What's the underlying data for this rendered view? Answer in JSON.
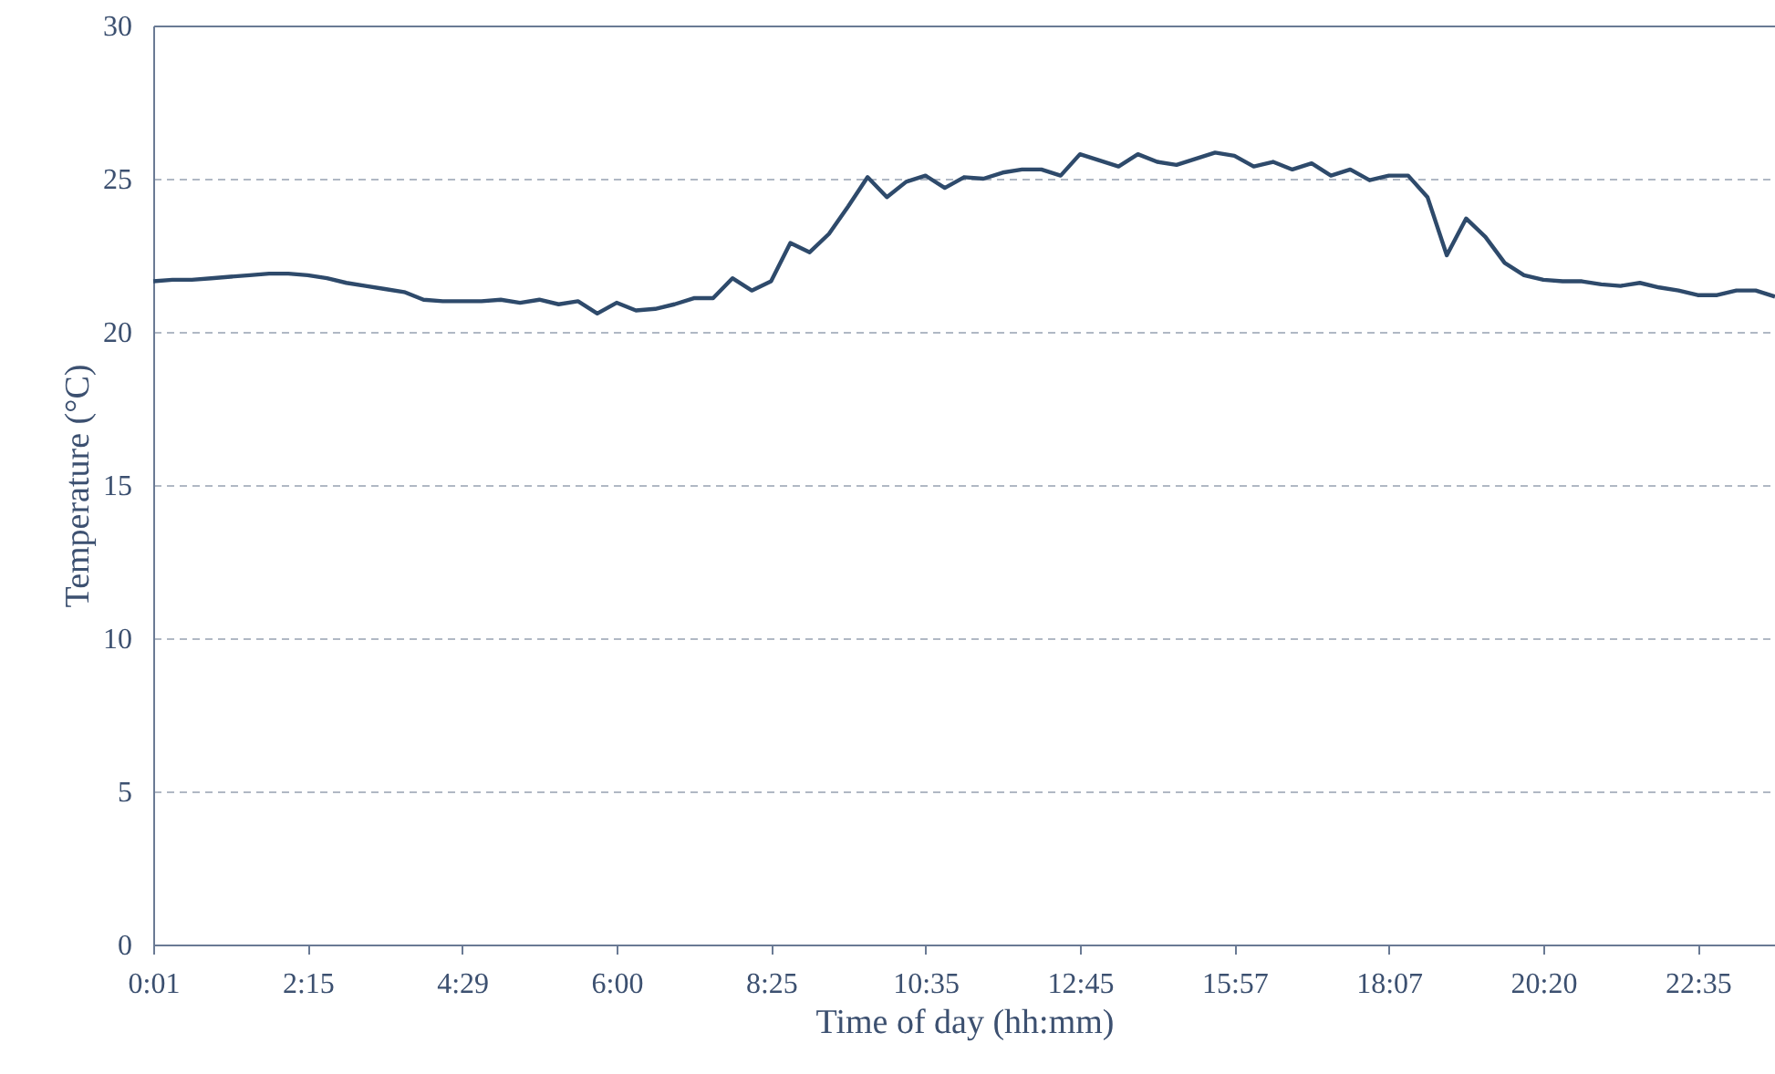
{
  "chart_data": {
    "type": "line",
    "xlabel": "Time of day (hh:mm)",
    "ylabel": "Temperature (°C)",
    "categories": [
      "0:01",
      null,
      null,
      null,
      null,
      null,
      null,
      null,
      "2:15",
      null,
      null,
      null,
      null,
      null,
      null,
      null,
      "4:29",
      null,
      null,
      null,
      null,
      null,
      null,
      null,
      "6:00",
      null,
      null,
      null,
      null,
      null,
      null,
      null,
      "8:25",
      null,
      null,
      null,
      null,
      null,
      null,
      null,
      "10:35",
      null,
      null,
      null,
      null,
      null,
      null,
      null,
      "12:45",
      null,
      null,
      null,
      null,
      null,
      null,
      null,
      "15:57",
      null,
      null,
      null,
      null,
      null,
      null,
      null,
      "18:07",
      null,
      null,
      null,
      null,
      null,
      null,
      null,
      "20:20",
      null,
      null,
      null,
      null,
      null,
      null,
      null,
      "22:35",
      null,
      null,
      null,
      null
    ],
    "series": [
      {
        "color": "#2e4a6b",
        "values": [
          21.65,
          21.7,
          21.7,
          21.75,
          21.8,
          21.85,
          21.9,
          21.9,
          21.85,
          21.75,
          21.6,
          21.5,
          21.4,
          21.3,
          21.05,
          21.0,
          21.0,
          21.0,
          21.05,
          20.95,
          21.05,
          20.9,
          21.0,
          20.6,
          20.95,
          20.7,
          20.75,
          20.9,
          21.1,
          21.1,
          21.75,
          21.35,
          21.65,
          22.9,
          22.6,
          23.2,
          24.1,
          25.05,
          24.4,
          24.9,
          25.1,
          24.7,
          25.05,
          25.0,
          25.2,
          25.3,
          25.3,
          25.1,
          25.8,
          25.6,
          25.4,
          25.8,
          25.55,
          25.45,
          25.65,
          25.85,
          25.75,
          25.4,
          25.55,
          25.3,
          25.5,
          25.1,
          25.3,
          24.95,
          25.1,
          25.1,
          24.4,
          22.5,
          23.7,
          23.1,
          22.25,
          21.85,
          21.7,
          21.65,
          21.65,
          21.55,
          21.5,
          21.6,
          21.45,
          21.35,
          21.2,
          21.2,
          21.35,
          21.35,
          21.15
        ]
      }
    ],
    "ylim": [
      0,
      30
    ],
    "yticks": [
      0,
      5,
      10,
      15,
      20,
      25,
      30
    ],
    "grid": "y",
    "marker": "none",
    "line_style": "solid"
  }
}
